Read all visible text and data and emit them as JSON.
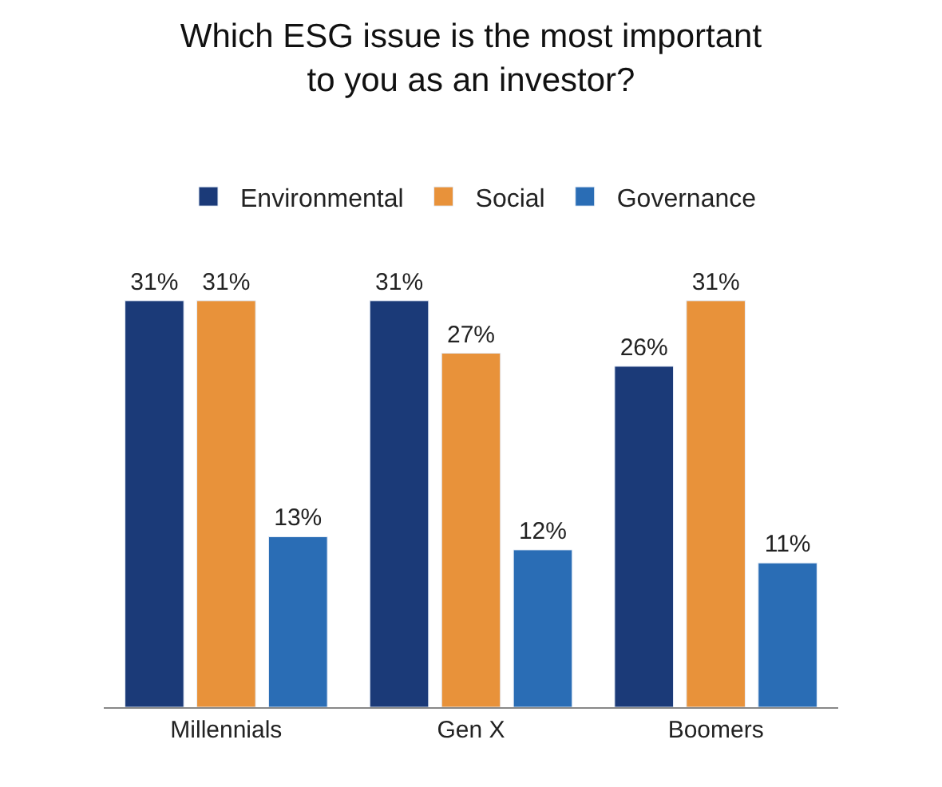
{
  "chart_data": {
    "type": "bar",
    "title": "Which ESG issue is the most important to you as an investor?",
    "categories": [
      "Millennials",
      "Gen X",
      "Boomers"
    ],
    "series": [
      {
        "name": "Environmental",
        "color": "#1b3a78",
        "values": [
          31,
          31,
          26
        ],
        "value_labels": [
          "31%",
          "31%",
          "26%"
        ]
      },
      {
        "name": "Social",
        "color": "#e8923a",
        "values": [
          31,
          27,
          31
        ],
        "value_labels": [
          "31%",
          "27%",
          "31%"
        ]
      },
      {
        "name": "Governance",
        "color": "#2a6db5",
        "values": [
          13,
          12,
          11
        ],
        "value_labels": [
          "13%",
          "12%",
          "11%"
        ]
      }
    ],
    "legend": "top",
    "tick_labels": "x"
  }
}
